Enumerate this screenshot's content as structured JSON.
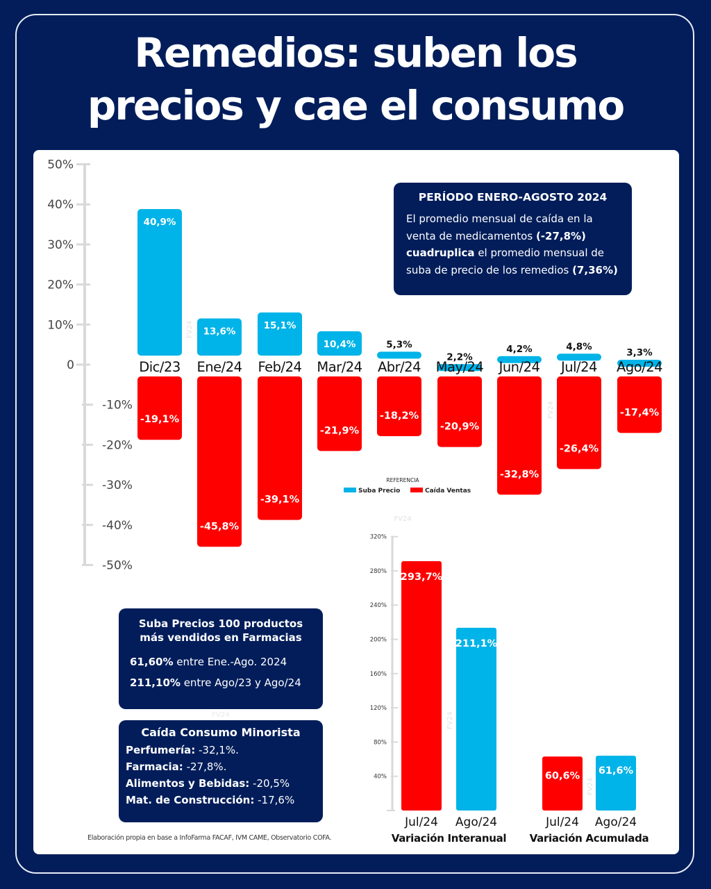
{
  "title": {
    "line1": "Remedios: suben los",
    "line2": "precios y cae el consumo"
  },
  "colors": {
    "navy": "#021d5a",
    "suba_precio": "#00b3e8",
    "caida_ventas": "#ff0000",
    "axis": "#d9d9d9"
  },
  "chart_data": [
    {
      "type": "bar",
      "title": "",
      "xlabel": "",
      "ylabel": "",
      "ylim": [
        -50,
        50
      ],
      "yticks": [
        "50%",
        "40%",
        "30%",
        "20%",
        "10%",
        "0",
        "-10%",
        "-20%",
        "-30%",
        "-40%",
        "-50%"
      ],
      "ytick_values": [
        50,
        40,
        30,
        20,
        10,
        0,
        -10,
        -20,
        -30,
        -40,
        -50
      ],
      "grid": false,
      "categories": [
        "Dic/23",
        "Ene/24",
        "Feb/24",
        "Mar/24",
        "Abr/24",
        "May/24",
        "Jun/24",
        "Jul/24",
        "Ago/24"
      ],
      "series": [
        {
          "name": "Suba Precio",
          "color": "#00b3e8",
          "values": [
            40.9,
            13.6,
            15.1,
            10.4,
            5.3,
            2.2,
            4.2,
            4.8,
            3.3
          ],
          "labels": [
            "40,9%",
            "13,6%",
            "15,1%",
            "10,4%",
            "5,3%",
            "2,2%",
            "4,2%",
            "4,8%",
            "3,3%"
          ]
        },
        {
          "name": "Caída Ventas",
          "color": "#ff0000",
          "values": [
            -19.1,
            -45.8,
            -39.1,
            -21.9,
            -18.2,
            -20.9,
            -32.8,
            -26.4,
            -17.4
          ],
          "labels": [
            "-19,1%",
            "-45,8%",
            "-39,1%",
            "-21,9%",
            "-18,2%",
            "-20,9%",
            "-32,8%",
            "-26,4%",
            "-17,4%"
          ]
        }
      ],
      "legend": {
        "title": "REFERENCIA",
        "placement": "center",
        "items": [
          "Suba Precio",
          "Caída Ventas"
        ]
      }
    },
    {
      "type": "bar",
      "title": "",
      "ylim": [
        0,
        320
      ],
      "yticks": [
        "320%",
        "280%",
        "240%",
        "200%",
        "160%",
        "120%",
        "80%",
        "40%"
      ],
      "ytick_values": [
        320,
        280,
        240,
        200,
        160,
        120,
        80,
        40
      ],
      "groups": [
        {
          "name": "Variación Interanual",
          "bars": [
            {
              "category": "Jul/24",
              "value": 293.7,
              "label": "293,7%",
              "color": "#ff0000"
            },
            {
              "category": "Ago/24",
              "value": 211.1,
              "label": "211,1%",
              "color": "#00b3e8"
            }
          ]
        },
        {
          "name": "Variación Acumulada",
          "bars": [
            {
              "category": "Jul/24",
              "value": 60.6,
              "label": "60,6%",
              "color": "#ff0000"
            },
            {
              "category": "Ago/24",
              "value": 61.6,
              "label": "61,6%",
              "color": "#00b3e8"
            }
          ]
        }
      ]
    }
  ],
  "watermark": "FV24",
  "period_box": {
    "heading": "PERÍODO ENERO-AGOSTO 2024",
    "text1": "El promedio mensual de caída en la venta de medicamentos ",
    "bold1": "(-27,8%)",
    "bold2": "cuadruplica",
    "text2": " el promedio mensual de suba de precio de los remedios ",
    "bold3": "(7,36%)"
  },
  "prices_box": {
    "heading_line1": "Suba Precios 100 productos",
    "heading_line2": "más vendidos en Farmacias",
    "rows": [
      {
        "value": "61,60%",
        "text": " entre Ene.-Ago. 2024"
      },
      {
        "value": "211,10%",
        "text": " entre Ago/23 y Ago/24"
      }
    ]
  },
  "consumo_box": {
    "heading": "Caída Consumo Minorista",
    "rows": [
      {
        "label": "Perfumería:",
        "value": " -32,1%."
      },
      {
        "label": "Farmacia:",
        "value": " -27,8%."
      },
      {
        "label": "Alimentos y Bebidas:",
        "value": " -20,5%"
      },
      {
        "label": "Mat. de Construcción:",
        "value": " -17,6%"
      }
    ]
  },
  "credit": "Elaboración propia en base a InfoFarma FACAF, IVM CAME, Observatorio COFA."
}
